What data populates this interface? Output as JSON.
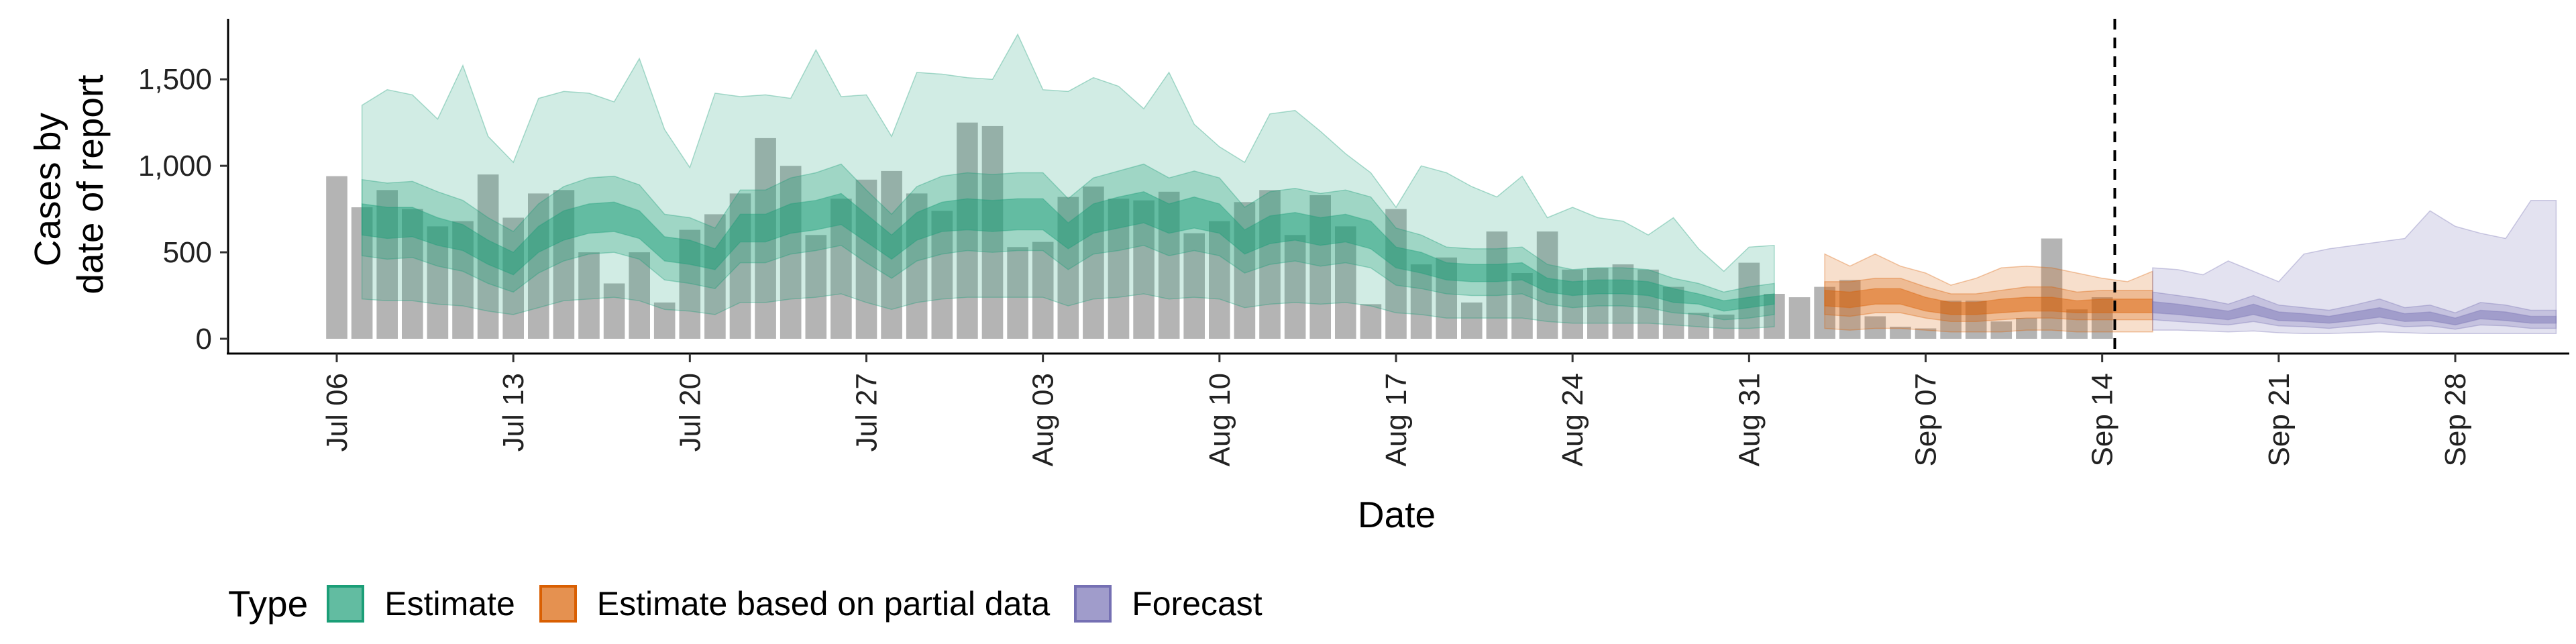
{
  "chart_data": {
    "type": "bar",
    "xlabel": "Date",
    "ylabel_lines": [
      "Cases by",
      "date of report"
    ],
    "ylim": [
      0,
      1850
    ],
    "yticks": [
      0,
      500,
      1000,
      1500
    ],
    "ytick_labels": [
      "0",
      "500",
      "1,000",
      "1,500"
    ],
    "x_start": "2020-07-06",
    "x_end": "2020-09-28",
    "xtick_labels": [
      "Jul 06",
      "Jul 13",
      "Jul 20",
      "Jul 27",
      "Aug 03",
      "Aug 10",
      "Aug 17",
      "Aug 24",
      "Aug 31",
      "Sep 07",
      "Sep 14",
      "Sep 21",
      "Sep 28"
    ],
    "xtick_dates": [
      "2020-07-06",
      "2020-07-13",
      "2020-07-20",
      "2020-07-27",
      "2020-08-03",
      "2020-08-10",
      "2020-08-17",
      "2020-08-24",
      "2020-08-31",
      "2020-09-07",
      "2020-09-14",
      "2020-09-21",
      "2020-09-28"
    ],
    "forecast_start_date": "2020-09-15",
    "bar_color": "#b4b4b4",
    "reported_cases": {
      "start_date": "2020-07-06",
      "values": [
        940,
        760,
        860,
        750,
        650,
        680,
        950,
        700,
        840,
        860,
        500,
        320,
        500,
        210,
        630,
        720,
        840,
        1160,
        1000,
        600,
        810,
        920,
        970,
        840,
        740,
        1250,
        1230,
        530,
        560,
        820,
        880,
        810,
        800,
        850,
        610,
        680,
        790,
        860,
        600,
        830,
        650,
        200,
        750,
        430,
        470,
        210,
        620,
        380,
        620,
        400,
        410,
        430,
        400,
        300,
        150,
        140,
        440,
        260,
        240,
        300,
        340,
        130,
        70,
        60,
        220,
        220,
        100,
        120,
        580,
        170,
        240
      ]
    },
    "series": [
      {
        "name": "Estimate",
        "color": "#1b9e77",
        "start_date": "2020-07-07",
        "median": [
          690,
          670,
          670,
          620,
          580,
          500,
          430,
          570,
          650,
          690,
          700,
          660,
          520,
          500,
          460,
          640,
          640,
          690,
          710,
          750,
          640,
          530,
          650,
          700,
          720,
          710,
          720,
          720,
          590,
          690,
          730,
          760,
          690,
          730,
          690,
          560,
          630,
          650,
          620,
          640,
          600,
          470,
          440,
          390,
          380,
          380,
          390,
          310,
          290,
          300,
          300,
          290,
          250,
          230,
          190,
          210,
          230
        ],
        "ci50": [
          [
            600,
            780
          ],
          [
            580,
            760
          ],
          [
            590,
            760
          ],
          [
            540,
            700
          ],
          [
            510,
            660
          ],
          [
            430,
            570
          ],
          [
            370,
            500
          ],
          [
            500,
            650
          ],
          [
            570,
            740
          ],
          [
            610,
            780
          ],
          [
            620,
            790
          ],
          [
            580,
            740
          ],
          [
            450,
            590
          ],
          [
            430,
            570
          ],
          [
            400,
            520
          ],
          [
            560,
            720
          ],
          [
            560,
            720
          ],
          [
            610,
            780
          ],
          [
            630,
            800
          ],
          [
            660,
            840
          ],
          [
            560,
            720
          ],
          [
            460,
            600
          ],
          [
            570,
            730
          ],
          [
            620,
            790
          ],
          [
            630,
            810
          ],
          [
            620,
            800
          ],
          [
            630,
            810
          ],
          [
            630,
            810
          ],
          [
            520,
            670
          ],
          [
            610,
            780
          ],
          [
            640,
            820
          ],
          [
            670,
            850
          ],
          [
            610,
            780
          ],
          [
            640,
            820
          ],
          [
            610,
            780
          ],
          [
            490,
            630
          ],
          [
            550,
            710
          ],
          [
            570,
            730
          ],
          [
            540,
            700
          ],
          [
            560,
            720
          ],
          [
            520,
            680
          ],
          [
            410,
            530
          ],
          [
            380,
            500
          ],
          [
            340,
            440
          ],
          [
            330,
            430
          ],
          [
            330,
            430
          ],
          [
            340,
            440
          ],
          [
            270,
            350
          ],
          [
            250,
            330
          ],
          [
            260,
            340
          ],
          [
            260,
            340
          ],
          [
            250,
            330
          ],
          [
            210,
            290
          ],
          [
            200,
            260
          ],
          [
            160,
            220
          ],
          [
            180,
            240
          ],
          [
            200,
            260
          ]
        ],
        "ci90": [
          [
            480,
            920
          ],
          [
            460,
            900
          ],
          [
            470,
            910
          ],
          [
            420,
            850
          ],
          [
            390,
            800
          ],
          [
            320,
            700
          ],
          [
            270,
            620
          ],
          [
            380,
            780
          ],
          [
            450,
            880
          ],
          [
            490,
            930
          ],
          [
            500,
            940
          ],
          [
            460,
            890
          ],
          [
            340,
            720
          ],
          [
            320,
            700
          ],
          [
            290,
            640
          ],
          [
            440,
            860
          ],
          [
            440,
            860
          ],
          [
            490,
            930
          ],
          [
            510,
            960
          ],
          [
            540,
            1010
          ],
          [
            440,
            860
          ],
          [
            350,
            720
          ],
          [
            450,
            880
          ],
          [
            490,
            940
          ],
          [
            510,
            960
          ],
          [
            500,
            950
          ],
          [
            510,
            960
          ],
          [
            510,
            960
          ],
          [
            400,
            810
          ],
          [
            490,
            930
          ],
          [
            510,
            970
          ],
          [
            540,
            1010
          ],
          [
            480,
            930
          ],
          [
            510,
            970
          ],
          [
            480,
            930
          ],
          [
            380,
            760
          ],
          [
            430,
            850
          ],
          [
            450,
            870
          ],
          [
            420,
            840
          ],
          [
            440,
            860
          ],
          [
            410,
            820
          ],
          [
            310,
            640
          ],
          [
            290,
            600
          ],
          [
            260,
            530
          ],
          [
            250,
            520
          ],
          [
            250,
            520
          ],
          [
            260,
            530
          ],
          [
            200,
            430
          ],
          [
            180,
            400
          ],
          [
            190,
            410
          ],
          [
            190,
            410
          ],
          [
            180,
            400
          ],
          [
            150,
            350
          ],
          [
            140,
            320
          ],
          [
            110,
            270
          ],
          [
            120,
            300
          ],
          [
            140,
            320
          ]
        ],
        "ci_outer": [
          [
            230,
            1350
          ],
          [
            220,
            1440
          ],
          [
            220,
            1410
          ],
          [
            200,
            1270
          ],
          [
            190,
            1580
          ],
          [
            160,
            1170
          ],
          [
            140,
            1020
          ],
          [
            180,
            1390
          ],
          [
            220,
            1430
          ],
          [
            230,
            1420
          ],
          [
            240,
            1370
          ],
          [
            220,
            1620
          ],
          [
            170,
            1210
          ],
          [
            160,
            990
          ],
          [
            140,
            1420
          ],
          [
            210,
            1400
          ],
          [
            210,
            1410
          ],
          [
            230,
            1390
          ],
          [
            240,
            1670
          ],
          [
            260,
            1400
          ],
          [
            210,
            1410
          ],
          [
            170,
            1170
          ],
          [
            210,
            1540
          ],
          [
            230,
            1530
          ],
          [
            240,
            1510
          ],
          [
            240,
            1500
          ],
          [
            240,
            1760
          ],
          [
            240,
            1440
          ],
          [
            190,
            1430
          ],
          [
            230,
            1510
          ],
          [
            240,
            1460
          ],
          [
            260,
            1330
          ],
          [
            230,
            1540
          ],
          [
            240,
            1240
          ],
          [
            230,
            1110
          ],
          [
            180,
            1020
          ],
          [
            200,
            1300
          ],
          [
            210,
            1320
          ],
          [
            200,
            1200
          ],
          [
            210,
            1070
          ],
          [
            190,
            960
          ],
          [
            150,
            760
          ],
          [
            140,
            1000
          ],
          [
            120,
            960
          ],
          [
            120,
            880
          ],
          [
            120,
            820
          ],
          [
            120,
            940
          ],
          [
            100,
            700
          ],
          [
            90,
            760
          ],
          [
            90,
            700
          ],
          [
            90,
            680
          ],
          [
            90,
            600
          ],
          [
            80,
            700
          ],
          [
            70,
            520
          ],
          [
            60,
            390
          ],
          [
            60,
            530
          ],
          [
            70,
            540
          ]
        ]
      },
      {
        "name": "Estimate based on partial data",
        "color": "#d95f02",
        "start_date": "2020-09-03",
        "median": [
          230,
          220,
          240,
          240,
          200,
          170,
          170,
          190,
          200,
          200,
          180,
          190,
          190,
          190
        ],
        "ci50": [
          [
            190,
            280
          ],
          [
            180,
            270
          ],
          [
            200,
            290
          ],
          [
            200,
            290
          ],
          [
            160,
            240
          ],
          [
            140,
            210
          ],
          [
            140,
            210
          ],
          [
            150,
            230
          ],
          [
            160,
            240
          ],
          [
            160,
            240
          ],
          [
            150,
            220
          ],
          [
            150,
            230
          ],
          [
            150,
            230
          ],
          [
            150,
            230
          ]
        ],
        "ci90": [
          [
            140,
            330
          ],
          [
            130,
            330
          ],
          [
            150,
            350
          ],
          [
            150,
            350
          ],
          [
            120,
            300
          ],
          [
            100,
            260
          ],
          [
            100,
            260
          ],
          [
            110,
            280
          ],
          [
            120,
            300
          ],
          [
            120,
            300
          ],
          [
            110,
            270
          ],
          [
            110,
            280
          ],
          [
            110,
            280
          ],
          [
            110,
            280
          ]
        ],
        "ci_outer": [
          [
            60,
            490
          ],
          [
            50,
            420
          ],
          [
            60,
            490
          ],
          [
            60,
            420
          ],
          [
            50,
            380
          ],
          [
            40,
            310
          ],
          [
            40,
            350
          ],
          [
            40,
            410
          ],
          [
            50,
            420
          ],
          [
            50,
            410
          ],
          [
            40,
            380
          ],
          [
            40,
            350
          ],
          [
            40,
            330
          ],
          [
            40,
            390
          ]
        ]
      },
      {
        "name": "Forecast",
        "color": "#7570b3",
        "start_date": "2020-09-16",
        "median": [
          180,
          170,
          150,
          130,
          170,
          130,
          120,
          110,
          130,
          150,
          120,
          130,
          100,
          140,
          130,
          110,
          110
        ],
        "ci50": [
          [
            150,
            215
          ],
          [
            140,
            200
          ],
          [
            125,
            180
          ],
          [
            110,
            160
          ],
          [
            140,
            200
          ],
          [
            105,
            155
          ],
          [
            100,
            145
          ],
          [
            90,
            130
          ],
          [
            105,
            155
          ],
          [
            125,
            180
          ],
          [
            100,
            145
          ],
          [
            105,
            155
          ],
          [
            80,
            120
          ],
          [
            115,
            165
          ],
          [
            105,
            155
          ],
          [
            90,
            130
          ],
          [
            90,
            130
          ]
        ],
        "ci90": [
          [
            110,
            270
          ],
          [
            100,
            250
          ],
          [
            90,
            230
          ],
          [
            80,
            200
          ],
          [
            100,
            250
          ],
          [
            75,
            195
          ],
          [
            70,
            180
          ],
          [
            60,
            165
          ],
          [
            75,
            195
          ],
          [
            90,
            230
          ],
          [
            70,
            180
          ],
          [
            75,
            195
          ],
          [
            55,
            150
          ],
          [
            80,
            210
          ],
          [
            75,
            195
          ],
          [
            60,
            165
          ],
          [
            60,
            165
          ]
        ],
        "ci_outer": [
          [
            50,
            410
          ],
          [
            50,
            400
          ],
          [
            45,
            370
          ],
          [
            40,
            450
          ],
          [
            45,
            390
          ],
          [
            35,
            330
          ],
          [
            30,
            490
          ],
          [
            30,
            520
          ],
          [
            35,
            540
          ],
          [
            40,
            560
          ],
          [
            35,
            580
          ],
          [
            30,
            740
          ],
          [
            30,
            650
          ],
          [
            30,
            610
          ],
          [
            30,
            580
          ],
          [
            30,
            800
          ],
          [
            30,
            800
          ]
        ]
      }
    ],
    "legend": {
      "title": "Type",
      "position": "bottom",
      "items": [
        "Estimate",
        "Estimate based on partial data",
        "Forecast"
      ]
    }
  }
}
